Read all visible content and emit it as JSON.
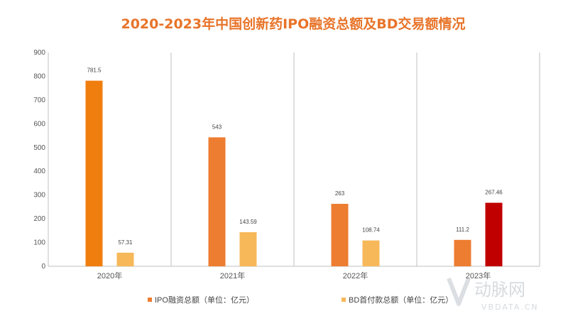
{
  "chart_data": {
    "type": "bar",
    "title": "2020-2023年中国创新药IPO融资总额及BD交易额情况",
    "categories": [
      "2020年",
      "2021年",
      "2022年",
      "2023年"
    ],
    "series": [
      {
        "name": "IPO融资总额（单位：亿元）",
        "values": [
          781.5,
          543,
          263,
          111.2
        ],
        "labels": [
          "781.5",
          "543",
          "263",
          "111.2"
        ]
      },
      {
        "name": "BD首付款总额（单位：亿元）",
        "values": [
          57.31,
          143.59,
          108.74,
          267.46
        ],
        "labels": [
          "57.31",
          "143.59",
          "108.74",
          "267.46"
        ]
      }
    ],
    "ylim": [
      0,
      900
    ],
    "yticks": [
      0,
      100,
      200,
      300,
      400,
      500,
      600,
      700,
      800,
      900
    ],
    "grid": false,
    "legend_position": "bottom",
    "colors": {
      "title": "#E8742A",
      "ipo_2020": "#F07E0F",
      "ipo": "#ED7D31",
      "bd": "#F7B85A",
      "bd_2023": "#C00000",
      "axis": "#BFBFBF"
    }
  },
  "watermark": {
    "brand": "动脉网",
    "url": "VBDATA.CN"
  }
}
